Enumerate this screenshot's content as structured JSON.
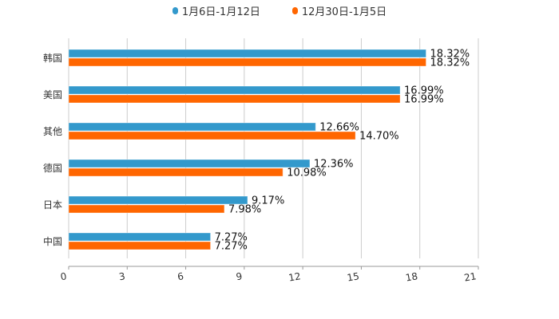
{
  "chart_data": {
    "type": "bar",
    "orientation": "horizontal",
    "categories": [
      "韩国",
      "美国",
      "其他",
      "德国",
      "日本",
      "中国"
    ],
    "series": [
      {
        "name": "1月6日-1月12日",
        "color": "#3399cc",
        "values": [
          18.32,
          16.99,
          12.66,
          12.36,
          9.17,
          7.27
        ],
        "labels": [
          "18.32%",
          "16.99%",
          "12.66%",
          "12.36%",
          "9.17%",
          "7.27%"
        ]
      },
      {
        "name": "12月30日-1月5日",
        "color": "#ff6600",
        "values": [
          18.32,
          16.99,
          14.7,
          10.98,
          7.98,
          7.27
        ],
        "labels": [
          "18.32%",
          "16.99%",
          "14.70%",
          "10.98%",
          "7.98%",
          "7.27%"
        ]
      }
    ],
    "xlim": [
      0,
      21
    ],
    "xticks": [
      "0",
      "3",
      "6",
      "9",
      "12",
      "15",
      "18",
      "21"
    ],
    "grid": true,
    "legend_position": "top-center"
  }
}
